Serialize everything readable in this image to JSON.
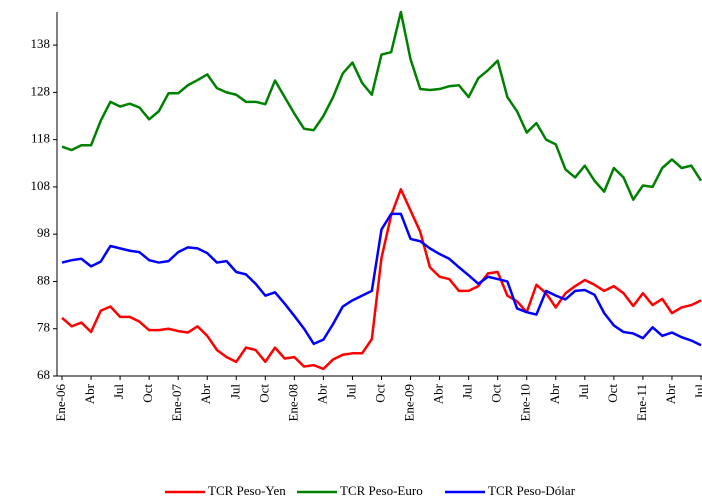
{
  "chart_data": {
    "type": "line",
    "categories": [
      "Ene-06",
      null,
      null,
      "Abr",
      null,
      null,
      "Jul",
      null,
      null,
      "Oct",
      null,
      null,
      "Ene-07",
      null,
      null,
      "Abr",
      null,
      null,
      "Jul",
      null,
      null,
      "Oct",
      null,
      null,
      "Ene-08",
      null,
      null,
      "Abr",
      null,
      null,
      "Jul",
      null,
      null,
      "Oct",
      null,
      null,
      "Ene-09",
      null,
      null,
      "Abr",
      null,
      null,
      "Jul",
      null,
      null,
      "Oct",
      null,
      null,
      "Ene-10",
      null,
      null,
      "Abr",
      null,
      null,
      "Jul",
      null,
      null,
      "Oct",
      null,
      null,
      "Ene-11",
      null,
      null,
      "Abr",
      null,
      null,
      "Jul"
    ],
    "series": [
      {
        "name": "TCR Peso-Yen",
        "color": "#ff0000",
        "values": [
          80.3,
          78.5,
          79.3,
          77.3,
          81.8,
          82.7,
          80.5,
          80.5,
          79.5,
          77.7,
          77.7,
          78,
          77.5,
          77.2,
          78.5,
          76.5,
          73.5,
          72,
          71,
          74,
          73.5,
          71,
          74,
          71.7,
          72,
          70,
          70.3,
          69.5,
          71.5,
          72.5,
          72.8,
          72.8,
          75.8,
          93,
          102,
          107.5,
          103,
          98.5,
          91,
          89,
          88.5,
          86,
          86,
          87,
          89.7,
          90,
          85,
          83.8,
          81.5,
          87.3,
          85.5,
          82.5,
          85.5,
          87,
          88.3,
          87.3,
          86,
          87,
          85.5,
          82.8,
          85.5,
          83,
          84.3,
          81.3,
          82.5,
          83,
          84
        ]
      },
      {
        "name": "TCR Peso-Euro",
        "color": "#008000",
        "values": [
          116.5,
          115.8,
          116.8,
          116.8,
          122,
          126,
          125,
          125.6,
          124.8,
          122.3,
          124,
          127.8,
          127.8,
          129.5,
          130.6,
          131.8,
          128.9,
          128,
          127.5,
          126,
          126,
          125.5,
          130.5,
          127,
          123.5,
          120.3,
          120,
          123,
          127,
          132,
          134.3,
          130,
          127.5,
          136,
          136.5,
          145,
          135,
          128.7,
          128.5,
          128.7,
          129.3,
          129.5,
          127,
          131,
          132.7,
          134.7,
          127,
          124,
          119.5,
          121.5,
          118,
          117,
          111.7,
          110,
          112.5,
          109.3,
          107,
          112,
          110,
          105.3,
          108.3,
          108,
          112,
          113.8,
          112,
          112.5,
          109.3
        ]
      },
      {
        "name": "TCR Peso-Dólar",
        "color": "#0000ff",
        "values": [
          92,
          92.5,
          92.8,
          91.2,
          92.2,
          95.5,
          95,
          94.5,
          94.2,
          92.5,
          92,
          92.3,
          94.2,
          95.2,
          95,
          94,
          92,
          92.3,
          90,
          89.5,
          87.5,
          85,
          85.7,
          83.3,
          80.7,
          78,
          74.8,
          75.7,
          79,
          82.7,
          84,
          85,
          86,
          99,
          102.3,
          102.3,
          97,
          96.5,
          95,
          93.8,
          92.8,
          91,
          89.3,
          87.5,
          89,
          88.5,
          88,
          82.3,
          81.5,
          81,
          86,
          85,
          84.2,
          86,
          86.2,
          85.2,
          81.3,
          78.7,
          77.3,
          77,
          76,
          78.3,
          76.5,
          77.2,
          76.2,
          75.5,
          74.5
        ]
      }
    ],
    "ylim": [
      68,
      145
    ],
    "yticks": [
      68,
      78,
      88,
      98,
      108,
      118,
      128,
      138
    ],
    "grid": false,
    "legend": "bottom"
  }
}
